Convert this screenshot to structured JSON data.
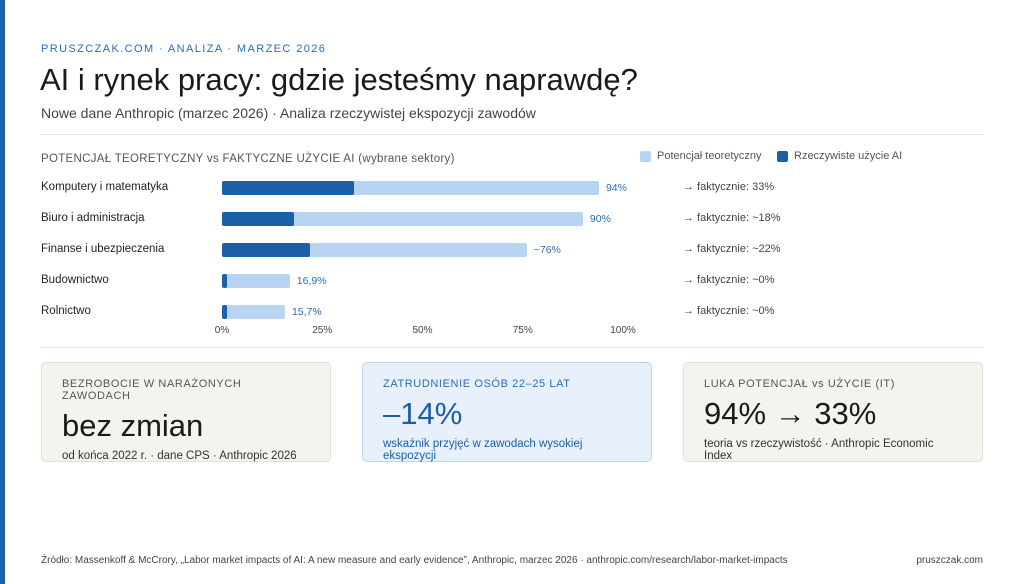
{
  "kicker": "PRUSZCZAK.COM · ANALIZA · MARZEC 2026",
  "title": "AI i rynek pracy: gdzie jesteśmy naprawdę?",
  "subtitle": "Nowe dane Anthropic (marzec 2026) · Analiza rzeczywistej ekspozycji zawodów",
  "colors": {
    "potential": "#b7d5f3",
    "actual": "#1c5fa8",
    "accent": "#1c5fa8"
  },
  "chart_data": {
    "type": "bar",
    "title": "POTENCJAŁ TEORETYCZNY vs FAKTYCZNE UŻYCIE AI (wybrane sektory)",
    "legend": [
      "Potencjał teoretyczny",
      "Rzeczywiste użycie AI"
    ],
    "xlim": [
      0,
      100
    ],
    "ticks": [
      "0%",
      "25%",
      "50%",
      "75%",
      "100%"
    ],
    "categories": [
      "Komputery i matematyka",
      "Biuro i administracja",
      "Finanse i ubezpieczenia",
      "Budownictwo",
      "Rolnictwo"
    ],
    "series": [
      {
        "name": "Potencjał teoretyczny",
        "values": [
          94,
          90,
          76,
          16.9,
          15.7
        ],
        "labels": [
          "94%",
          "90%",
          "~76%",
          "16,9%",
          "15,7%"
        ]
      },
      {
        "name": "Rzeczywiste użycie AI",
        "values": [
          33,
          18,
          22,
          0,
          0
        ],
        "labels": [
          "→ faktycznie: 33%",
          "→ faktycznie: ~18%",
          "→ faktycznie: ~22%",
          "→ faktycznie: ~0%",
          "→ faktycznie: ~0%"
        ]
      }
    ]
  },
  "cards": [
    {
      "heading": "BEZROBOCIE W NARAŻONYCH ZAWODACH",
      "value": "bez zmian",
      "note": "od końca 2022 r. · dane CPS · Anthropic 2026"
    },
    {
      "heading": "ZATRUDNIENIE OSÓB 22–25 LAT",
      "value": "–14%",
      "note": "wskaźnik przyjęć w zawodach wysokiej ekspozycji"
    },
    {
      "heading": "LUKA POTENCJAŁ vs UŻYCIE (IT)",
      "value": "94% → 33%",
      "note": "teoria vs rzeczywistość · Anthropic Economic Index"
    }
  ],
  "footer": {
    "source": "Źródło: Massenkoff & McCrory, „Labor market impacts of AI: A new measure and early evidence”, Anthropic, marzec 2026 · anthropic.com/research/labor-market-impacts",
    "site": "pruszczak.com"
  }
}
